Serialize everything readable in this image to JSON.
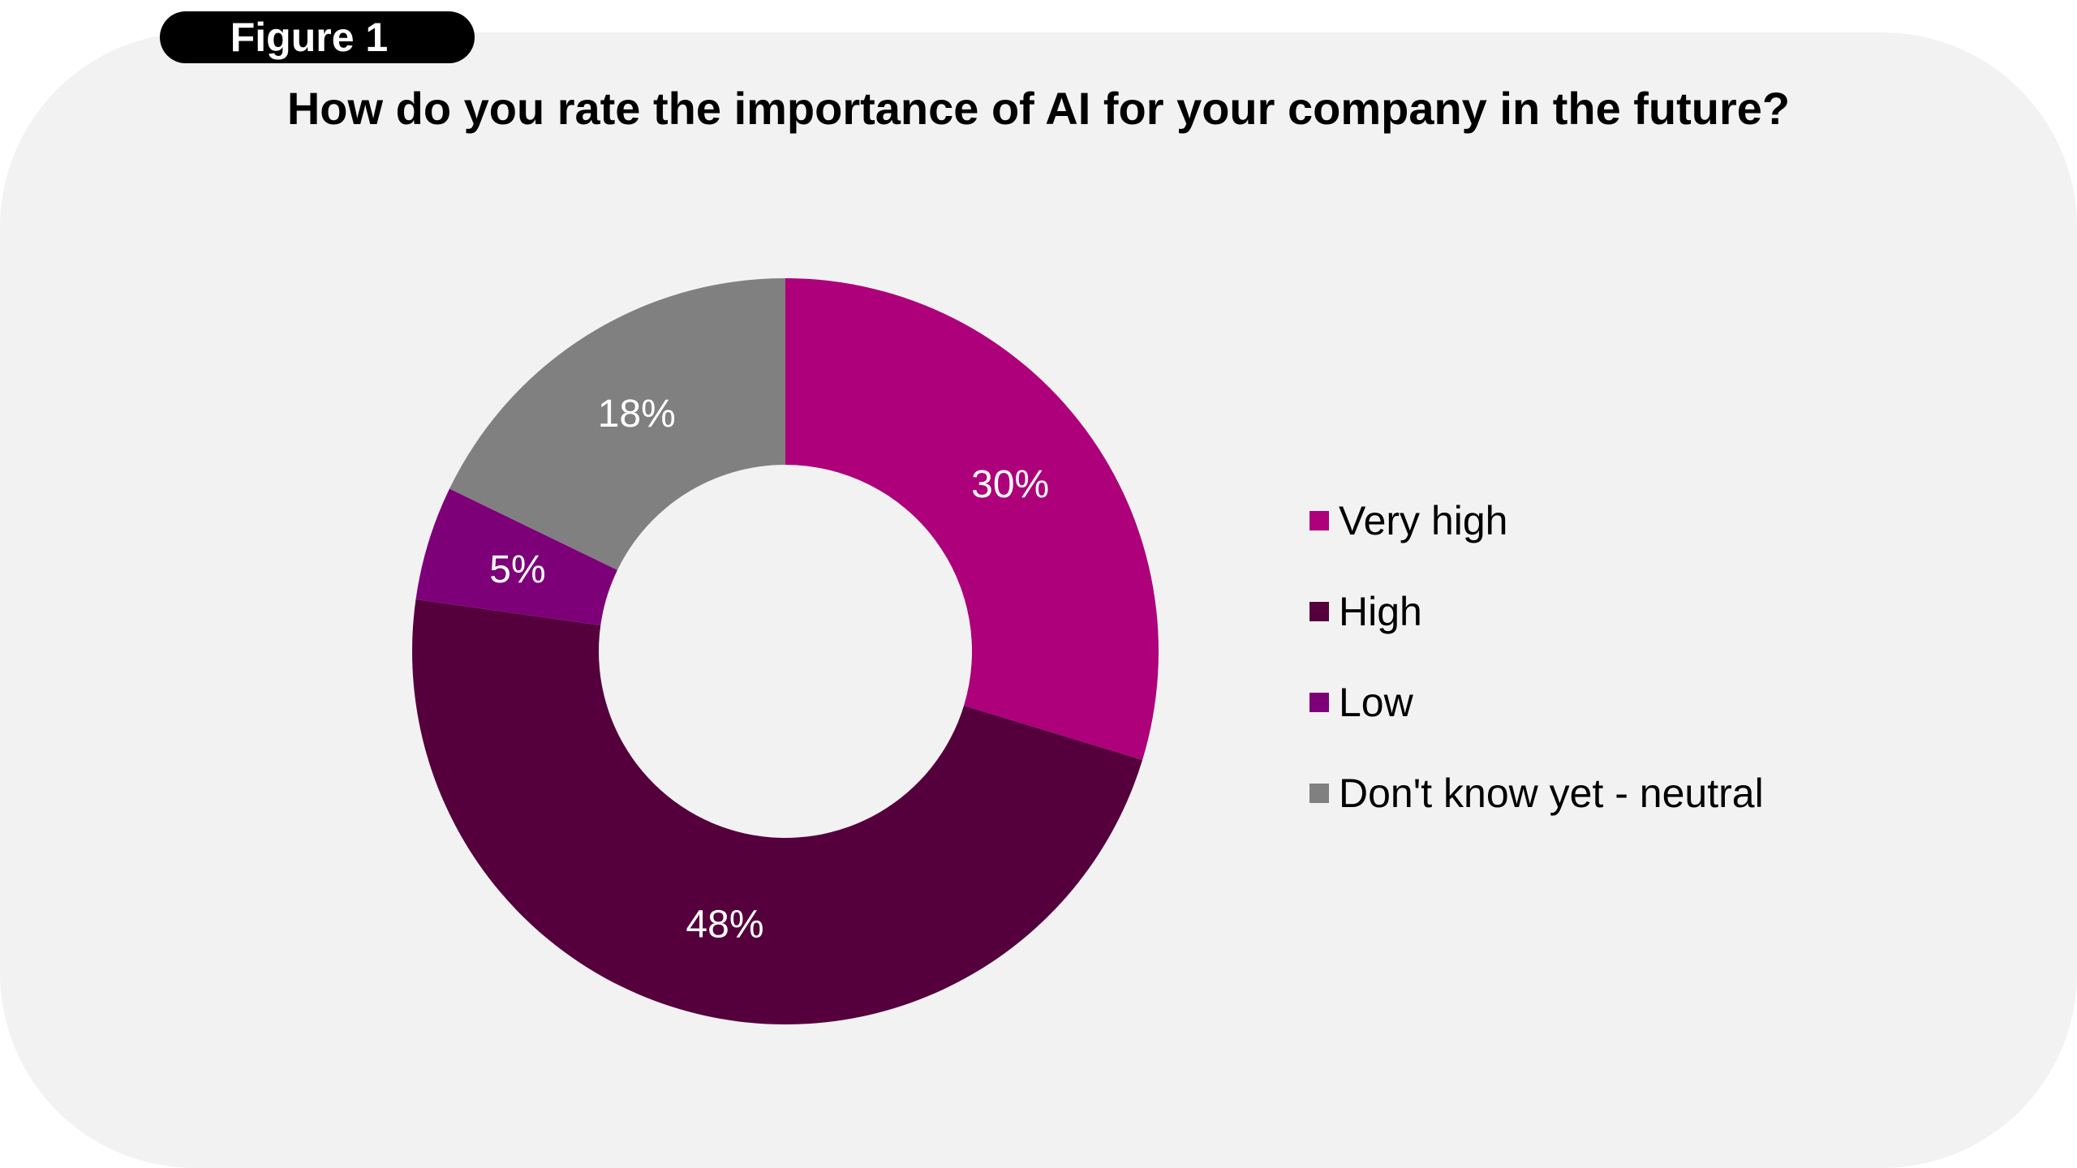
{
  "figure_label": "Figure 1",
  "colors": {
    "panel_background": "#f3f2f2",
    "badge_background": "#000000",
    "badge_text": "#ffffff",
    "title_text": "#000000",
    "data_label_text": "#ffffff"
  },
  "chart_data": {
    "type": "pie",
    "variant": "donut",
    "title": "How do you rate the importance of AI for your company in the future?",
    "legend_position": "right",
    "unit": "%",
    "slices": [
      {
        "label": "Very high",
        "value": 30,
        "display": "30%",
        "color": "#ad007a"
      },
      {
        "label": "High",
        "value": 48,
        "display": "48%",
        "color": "#55003d"
      },
      {
        "label": "Low",
        "value": 5,
        "display": "5%",
        "color": "#7d0079"
      },
      {
        "label": "Don't know yet - neutral",
        "value": 18,
        "display": "18%",
        "color": "#808080"
      }
    ]
  }
}
